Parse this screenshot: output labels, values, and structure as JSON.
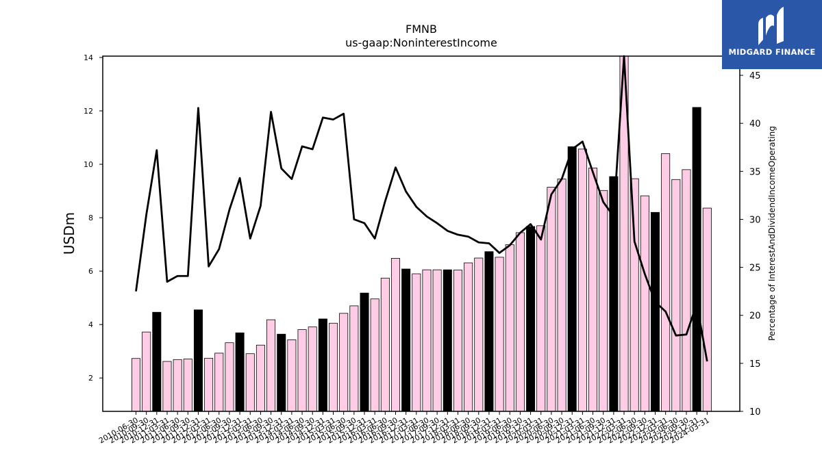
{
  "logo": {
    "text": "MIDGARD FINANCE"
  },
  "chart_data": {
    "type": "bar",
    "title": "FMNB",
    "subtitle": "us-gaap:NoninterestIncome",
    "ylabel": "USDm",
    "y2label": "Percentage of InterestAndDividendIncomeOperating",
    "ylim": [
      0.75,
      14.05
    ],
    "y2lim": [
      10,
      47
    ],
    "yticks": [
      2,
      4,
      6,
      8,
      10,
      12,
      14
    ],
    "y2ticks": [
      10,
      15,
      20,
      25,
      30,
      35,
      40,
      45
    ],
    "grid": false,
    "colors": {
      "bar": "#ffcce6",
      "bar_highlight": "#000000",
      "line": "#000000"
    },
    "categories": [
      "2010-06-30",
      "2010-09-30",
      "2010-12-31",
      "2011-03-31",
      "2011-06-30",
      "2011-09-30",
      "2011-12-31",
      "2012-03-31",
      "2012-06-30",
      "2012-09-30",
      "2012-12-31",
      "2013-03-31",
      "2013-06-30",
      "2013-09-30",
      "2013-12-31",
      "2014-03-31",
      "2014-06-30",
      "2014-09-30",
      "2014-12-31",
      "2015-03-31",
      "2015-06-30",
      "2015-09-30",
      "2015-12-31",
      "2016-03-31",
      "2016-06-30",
      "2016-09-30",
      "2016-12-31",
      "2017-03-31",
      "2017-06-30",
      "2017-09-30",
      "2017-12-31",
      "2018-03-31",
      "2018-06-30",
      "2018-09-30",
      "2018-12-31",
      "2019-03-31",
      "2019-06-30",
      "2019-09-30",
      "2019-12-31",
      "2020-03-31",
      "2020-06-30",
      "2020-09-30",
      "2020-12-31",
      "2021-03-31",
      "2021-06-30",
      "2021-09-30",
      "2021-12-31",
      "2022-03-31",
      "2022-06-30",
      "2022-09-30",
      "2022-12-31",
      "2023-03-31",
      "2023-06-30",
      "2023-09-30",
      "2023-12-31",
      "2024-03-31"
    ],
    "series": [
      {
        "kind": "bar",
        "values": [
          2.73,
          3.72,
          4.46,
          2.62,
          2.69,
          2.71,
          4.55,
          2.74,
          2.93,
          3.32,
          3.69,
          2.91,
          3.23,
          4.18,
          3.64,
          3.43,
          3.81,
          3.91,
          4.21,
          4.05,
          4.42,
          4.7,
          5.18,
          4.96,
          5.74,
          6.48,
          6.08,
          5.9,
          6.05,
          6.05,
          6.05,
          6.04,
          6.31,
          6.49,
          6.73,
          6.52,
          6.99,
          7.44,
          7.67,
          7.7,
          9.14,
          9.45,
          10.66,
          10.57,
          9.86,
          9.02,
          9.54,
          14.05,
          9.46,
          8.82,
          8.2,
          10.4,
          9.43,
          9.8,
          12.13,
          8.36
        ],
        "highlight": [
          false,
          false,
          true,
          false,
          false,
          false,
          true,
          false,
          false,
          false,
          true,
          false,
          false,
          false,
          true,
          false,
          false,
          false,
          true,
          false,
          false,
          false,
          true,
          false,
          false,
          false,
          true,
          false,
          false,
          false,
          true,
          false,
          false,
          false,
          true,
          false,
          false,
          false,
          true,
          false,
          false,
          false,
          true,
          false,
          false,
          false,
          true,
          false,
          false,
          false,
          true,
          false,
          false,
          false,
          true,
          false
        ]
      },
      {
        "kind": "line",
        "axis": "right",
        "values": [
          22.5,
          30.5,
          37.2,
          23.5,
          24.1,
          24.1,
          41.6,
          25.1,
          26.9,
          31.0,
          34.3,
          28.0,
          31.4,
          41.2,
          35.3,
          34.2,
          37.6,
          37.3,
          40.6,
          40.4,
          41.0,
          30.0,
          29.6,
          28.0,
          31.9,
          35.4,
          32.9,
          31.3,
          30.3,
          29.6,
          28.8,
          28.4,
          28.2,
          27.6,
          27.5,
          26.5,
          27.3,
          28.6,
          29.5,
          27.9,
          32.6,
          34.2,
          37.3,
          38.1,
          34.9,
          31.8,
          30.3,
          47.0,
          27.7,
          24.3,
          21.4,
          20.4,
          17.9,
          18.0,
          21.2,
          15.2
        ]
      }
    ]
  }
}
